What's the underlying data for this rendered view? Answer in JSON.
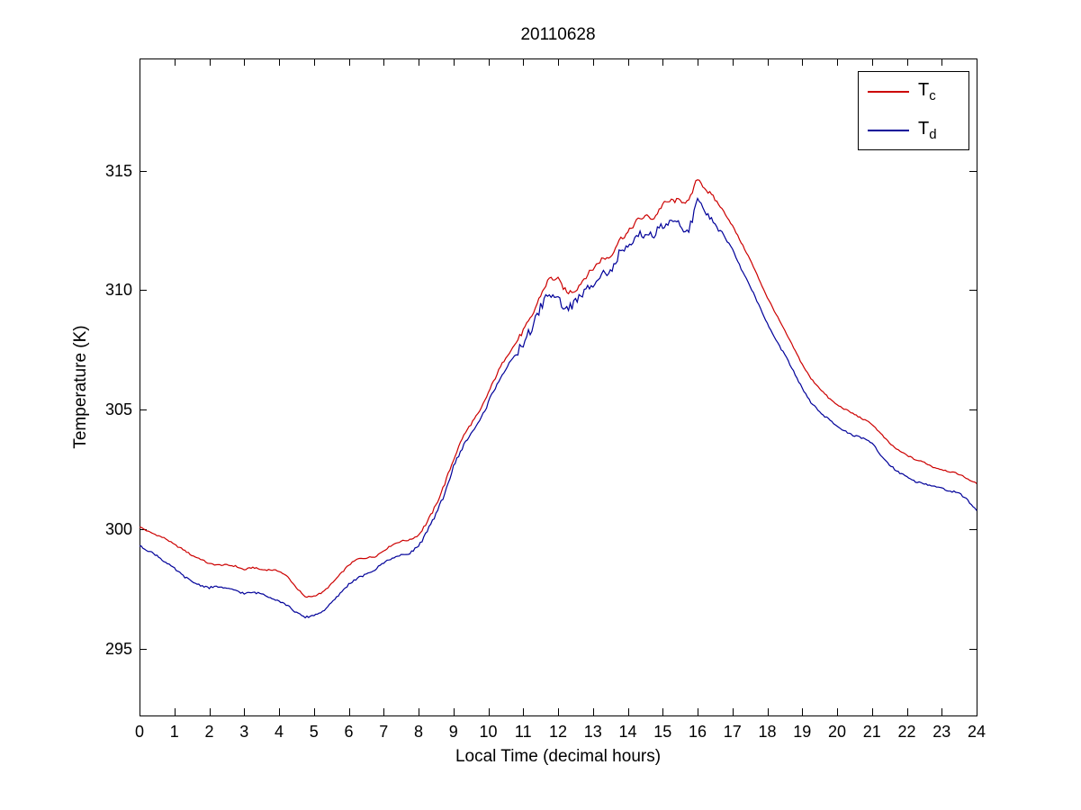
{
  "figure": {
    "background": "#ffffff"
  },
  "chart_data": {
    "type": "line",
    "title": "20110628",
    "xlabel": "Local Time (decimal hours)",
    "ylabel": "Temperature (K)",
    "xlim": [
      0,
      24
    ],
    "ylim": [
      292.2,
      319.7
    ],
    "xticks": [
      0,
      1,
      2,
      3,
      4,
      5,
      6,
      7,
      8,
      9,
      10,
      11,
      12,
      13,
      14,
      15,
      16,
      17,
      18,
      19,
      20,
      21,
      22,
      23,
      24
    ],
    "yticks": [
      295,
      300,
      305,
      310,
      315
    ],
    "grid": false,
    "legend": {
      "position": "top-right",
      "entries": [
        {
          "label_main": "T",
          "label_sub": "c",
          "color": "#cc0000"
        },
        {
          "label_main": "T",
          "label_sub": "d",
          "color": "#000099"
        }
      ]
    },
    "series": [
      {
        "name": "Tc",
        "color": "#cc0000",
        "x0": 0,
        "dx": 0.25,
        "y": [
          300.1,
          299.9,
          299.75,
          299.6,
          299.35,
          299.15,
          298.9,
          298.75,
          298.55,
          298.5,
          298.5,
          298.45,
          298.3,
          298.4,
          298.3,
          298.3,
          298.25,
          298.0,
          297.55,
          297.15,
          297.2,
          297.35,
          297.7,
          298.1,
          298.5,
          298.75,
          298.8,
          298.85,
          299.1,
          299.35,
          299.5,
          299.55,
          299.75,
          300.3,
          301.0,
          301.9,
          302.9,
          303.8,
          304.4,
          304.9,
          305.7,
          306.5,
          307.2,
          307.7,
          308.3,
          308.9,
          309.8,
          310.5,
          310.45,
          309.9,
          310.0,
          310.5,
          310.9,
          311.3,
          311.4,
          312.1,
          312.4,
          312.9,
          313.1,
          313.0,
          313.6,
          313.75,
          313.75,
          313.7,
          314.7,
          314.2,
          313.8,
          313.3,
          312.7,
          312.0,
          311.3,
          310.5,
          309.7,
          309.0,
          308.3,
          307.6,
          306.9,
          306.3,
          305.9,
          305.5,
          305.2,
          305.0,
          304.8,
          304.6,
          304.4,
          304.0,
          303.6,
          303.3,
          303.1,
          302.9,
          302.8,
          302.6,
          302.5,
          302.4,
          302.3,
          302.1,
          301.9
        ],
        "noise": {
          "base": 0.03,
          "ranges": [
            {
              "from": 8.0,
              "to": 10.8,
              "amplitude": 0.06
            },
            {
              "from": 10.8,
              "to": 16.6,
              "amplitude": 0.1
            }
          ]
        }
      },
      {
        "name": "Td",
        "color": "#000099",
        "x0": 0,
        "dx": 0.25,
        "y": [
          299.3,
          299.1,
          298.9,
          298.6,
          298.35,
          298.05,
          297.8,
          297.65,
          297.55,
          297.6,
          297.5,
          297.45,
          297.3,
          297.35,
          297.3,
          297.15,
          297.0,
          296.8,
          296.5,
          296.3,
          296.4,
          296.55,
          296.9,
          297.3,
          297.7,
          297.95,
          298.1,
          298.3,
          298.6,
          298.8,
          298.9,
          299.0,
          299.3,
          299.9,
          300.6,
          301.5,
          302.6,
          303.4,
          304.0,
          304.5,
          305.3,
          306.1,
          306.7,
          307.2,
          307.8,
          308.4,
          309.3,
          309.9,
          309.6,
          309.2,
          309.5,
          309.9,
          310.3,
          310.8,
          310.7,
          311.5,
          311.7,
          312.2,
          312.4,
          312.3,
          312.7,
          312.8,
          312.7,
          312.5,
          313.7,
          313.2,
          312.9,
          312.3,
          311.7,
          310.9,
          310.2,
          309.4,
          308.6,
          307.9,
          307.3,
          306.6,
          305.9,
          305.3,
          304.9,
          304.6,
          304.3,
          304.1,
          303.9,
          303.8,
          303.6,
          303.1,
          302.7,
          302.4,
          302.2,
          302.0,
          301.9,
          301.8,
          301.7,
          301.6,
          301.5,
          301.2,
          300.8
        ],
        "noise": {
          "base": 0.04,
          "ranges": [
            {
              "from": 8.0,
              "to": 10.8,
              "amplitude": 0.08
            },
            {
              "from": 10.8,
              "to": 16.6,
              "amplitude": 0.2
            }
          ]
        }
      }
    ]
  }
}
